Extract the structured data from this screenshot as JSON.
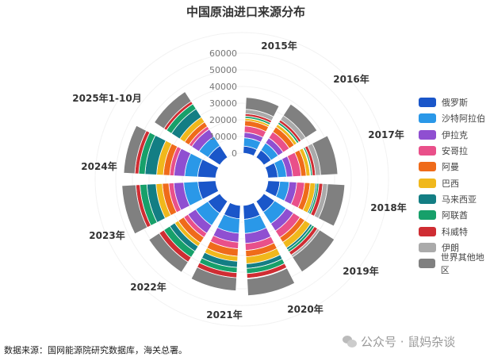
{
  "chart_data": {
    "type": "polar-stacked-bar",
    "title": "中国原油进口来源分布",
    "categories": [
      "2015年",
      "2016年",
      "2017年",
      "2018年",
      "2019年",
      "2020年",
      "2021年",
      "2022年",
      "2023年",
      "2024年",
      "2025年1-10月"
    ],
    "radial_ticks": [
      "0",
      "10000",
      "20000",
      "30000",
      "40000",
      "50000",
      "60000"
    ],
    "radial_range": [
      0,
      60000
    ],
    "legend_position": "right",
    "series": [
      {
        "name": "俄罗斯",
        "color": "#1a56c9",
        "values": [
          4243,
          5238,
          5980,
          7149,
          7764,
          8357,
          7964,
          8625,
          10702,
          10847,
          8400
        ]
      },
      {
        "name": "沙特阿拉伯",
        "color": "#2a98e8",
        "values": [
          5055,
          5100,
          5218,
          5673,
          8333,
          8492,
          8757,
          8749,
          8596,
          7864,
          6600
        ]
      },
      {
        "name": "伊拉克",
        "color": "#8f4fd1",
        "values": [
          3211,
          3622,
          3686,
          4505,
          5180,
          6012,
          5407,
          5549,
          5925,
          6389,
          5200
        ]
      },
      {
        "name": "安哥拉",
        "color": "#e9508a",
        "values": [
          3870,
          4375,
          5043,
          4738,
          4737,
          4178,
          3916,
          3003,
          3005,
          2586,
          2000
        ]
      },
      {
        "name": "阿曼",
        "color": "#ef6b1a",
        "values": [
          3207,
          3507,
          3101,
          3290,
          3383,
          3783,
          4482,
          3931,
          3900,
          3800,
          3100
        ]
      },
      {
        "name": "巴西",
        "color": "#f0b81c",
        "values": [
          1392,
          1915,
          2308,
          3162,
          4016,
          4219,
          3030,
          2492,
          3774,
          4023,
          3500
        ]
      },
      {
        "name": "马来西亚",
        "color": "#137e84",
        "values": [
          50,
          218,
          400,
          900,
          1360,
          2800,
          3700,
          3570,
          5478,
          7020,
          5900
        ]
      },
      {
        "name": "阿联酋",
        "color": "#17a06a",
        "values": [
          1257,
          1218,
          1016,
          1220,
          1528,
          3116,
          3194,
          4278,
          4181,
          3800,
          3600
        ]
      },
      {
        "name": "科威特",
        "color": "#cf2d33",
        "values": [
          1443,
          1634,
          1824,
          2321,
          2269,
          2750,
          3016,
          3328,
          2450,
          2300,
          1800
        ]
      },
      {
        "name": "伊朗",
        "color": "#aaaaaa",
        "values": [
          2662,
          3129,
          3115,
          2927,
          1480,
          390,
          0,
          0,
          0,
          0,
          0
        ]
      },
      {
        "name": "世界其他地区",
        "color": "#808080",
        "values": [
          7160,
          8145,
          10266,
          10305,
          10522,
          10142,
          7832,
          7303,
          8388,
          6713,
          6900
        ]
      }
    ]
  },
  "footer": {
    "source": "数据来源：国网能源院研究数据库，海关总署。",
    "watermark": "公众号 · 鼠妈杂谈"
  }
}
